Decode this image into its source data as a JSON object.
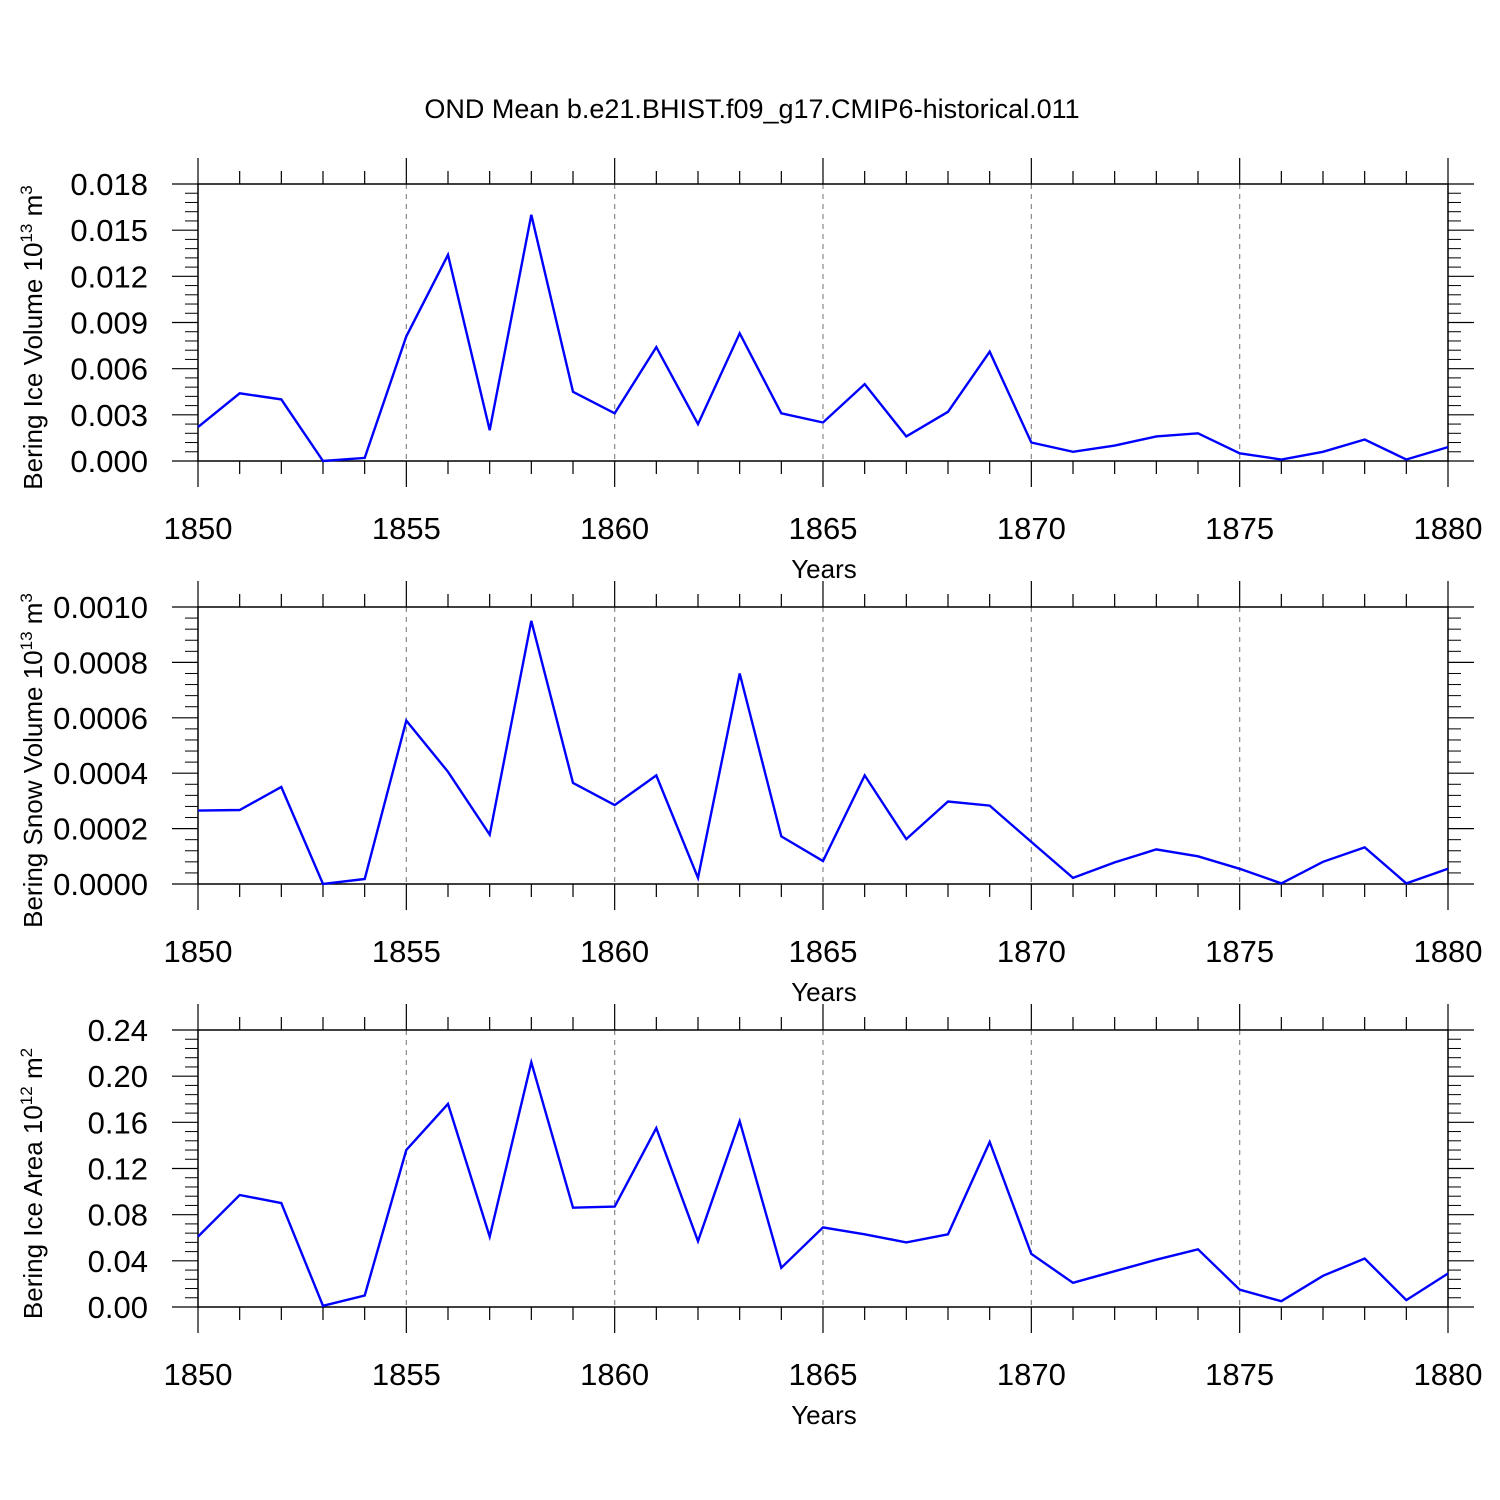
{
  "title": "OND Mean b.e21.BHIST.f09_g17.CMIP6-historical.011",
  "chart_data": [
    {
      "type": "line",
      "title": "OND Mean b.e21.BHIST.f09_g17.CMIP6-historical.011",
      "ylabel": "Bering Ice Volume 10",
      "ylabel_exp": "13",
      "ylabel_unit": " m",
      "ylabel_unit_exp": "3",
      "xlabel": "Years",
      "xlim": [
        1850,
        1880
      ],
      "ylim": [
        0,
        0.018
      ],
      "yticks": [
        0.0,
        0.003,
        0.006,
        0.009,
        0.012,
        0.015,
        0.018
      ],
      "ytick_labels": [
        "0.000",
        "0.003",
        "0.006",
        "0.009",
        "0.012",
        "0.015",
        "0.018"
      ],
      "xticks": [
        1850,
        1855,
        1860,
        1865,
        1870,
        1875,
        1880
      ],
      "xtick_labels": [
        "1850",
        "1855",
        "1860",
        "1865",
        "1870",
        "1875",
        "1880"
      ],
      "grid": "vertical dashed at major x ticks",
      "color": "#0000ff",
      "series": [
        {
          "name": "Bering Ice Volume",
          "x": [
            1850,
            1851,
            1852,
            1853,
            1854,
            1855,
            1856,
            1857,
            1858,
            1859,
            1860,
            1861,
            1862,
            1863,
            1864,
            1865,
            1866,
            1867,
            1868,
            1869,
            1870,
            1871,
            1872,
            1873,
            1874,
            1875,
            1876,
            1877,
            1878,
            1879,
            1880
          ],
          "values": [
            0.0022,
            0.0044,
            0.004,
            0.0,
            0.0002,
            0.0081,
            0.0134,
            0.002,
            0.016,
            0.0045,
            0.0031,
            0.0074,
            0.0024,
            0.0083,
            0.0031,
            0.0025,
            0.005,
            0.0016,
            0.0032,
            0.0071,
            0.0012,
            0.0006,
            0.001,
            0.0016,
            0.0018,
            0.0005,
            0.0001,
            0.0006,
            0.0014,
            0.0001,
            0.0009
          ]
        }
      ]
    },
    {
      "type": "line",
      "ylabel": "Bering Snow Volume 10",
      "ylabel_exp": "13",
      "ylabel_unit": " m",
      "ylabel_unit_exp": "3",
      "xlabel": "Years",
      "xlim": [
        1850,
        1880
      ],
      "ylim": [
        0,
        0.001
      ],
      "yticks": [
        0.0,
        0.0002,
        0.0004,
        0.0006,
        0.0008,
        0.001
      ],
      "ytick_labels": [
        "0.0000",
        "0.0002",
        "0.0004",
        "0.0006",
        "0.0008",
        "0.0010"
      ],
      "xticks": [
        1850,
        1855,
        1860,
        1865,
        1870,
        1875,
        1880
      ],
      "xtick_labels": [
        "1850",
        "1855",
        "1860",
        "1865",
        "1870",
        "1875",
        "1880"
      ],
      "grid": "vertical dashed at major x ticks",
      "color": "#0000ff",
      "series": [
        {
          "name": "Bering Snow Volume",
          "x": [
            1850,
            1851,
            1852,
            1853,
            1854,
            1855,
            1856,
            1857,
            1858,
            1859,
            1860,
            1861,
            1862,
            1863,
            1864,
            1865,
            1866,
            1867,
            1868,
            1869,
            1870,
            1871,
            1872,
            1873,
            1874,
            1875,
            1876,
            1877,
            1878,
            1879,
            1880
          ],
          "values": [
            0.000265,
            0.000267,
            0.00035,
            0.0,
            1.8e-05,
            0.00059,
            0.000405,
            0.000178,
            0.00095,
            0.000365,
            0.000285,
            0.000392,
            2.2e-05,
            0.00076,
            0.000172,
            8.3e-05,
            0.000392,
            0.000162,
            0.000298,
            0.000283,
            0.000152,
            2.2e-05,
            7.8e-05,
            0.000125,
            0.0001,
            5.5e-05,
            2e-06,
            8e-05,
            0.000132,
            2e-06,
            5.5e-05
          ]
        }
      ]
    },
    {
      "type": "line",
      "ylabel": "Bering Ice Area 10",
      "ylabel_exp": "12",
      "ylabel_unit": " m",
      "ylabel_unit_exp": "2",
      "xlabel": "Years",
      "xlim": [
        1850,
        1880
      ],
      "ylim": [
        0,
        0.24
      ],
      "yticks": [
        0.0,
        0.04,
        0.08,
        0.12,
        0.16,
        0.2,
        0.24
      ],
      "ytick_labels": [
        "0.00",
        "0.04",
        "0.08",
        "0.12",
        "0.16",
        "0.20",
        "0.24"
      ],
      "xticks": [
        1850,
        1855,
        1860,
        1865,
        1870,
        1875,
        1880
      ],
      "xtick_labels": [
        "1850",
        "1855",
        "1860",
        "1865",
        "1870",
        "1875",
        "1880"
      ],
      "grid": "vertical dashed at major x ticks",
      "color": "#0000ff",
      "series": [
        {
          "name": "Bering Ice Area",
          "x": [
            1850,
            1851,
            1852,
            1853,
            1854,
            1855,
            1856,
            1857,
            1858,
            1859,
            1860,
            1861,
            1862,
            1863,
            1864,
            1865,
            1866,
            1867,
            1868,
            1869,
            1870,
            1871,
            1872,
            1873,
            1874,
            1875,
            1876,
            1877,
            1878,
            1879,
            1880
          ],
          "values": [
            0.061,
            0.097,
            0.09,
            0.001,
            0.01,
            0.136,
            0.176,
            0.061,
            0.212,
            0.086,
            0.087,
            0.155,
            0.057,
            0.161,
            0.034,
            0.069,
            0.063,
            0.056,
            0.063,
            0.143,
            0.046,
            0.021,
            0.031,
            0.041,
            0.05,
            0.015,
            0.005,
            0.027,
            0.042,
            0.006,
            0.029
          ]
        }
      ]
    }
  ]
}
